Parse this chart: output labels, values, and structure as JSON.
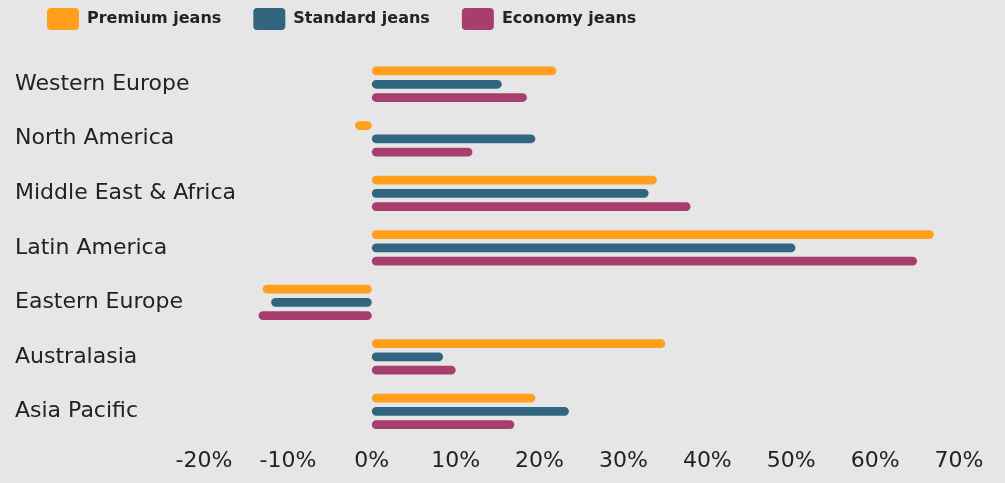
{
  "chart_data": {
    "type": "bar",
    "orientation": "horizontal",
    "categories": [
      "Western Europe",
      "North America",
      "Middle East & Africa",
      "Latin America",
      "Eastern Europe",
      "Australasia",
      "Asia Pacific"
    ],
    "series": [
      {
        "name": "Premium jeans",
        "color": "#ff9f1c",
        "values": [
          22,
          -2,
          34,
          67,
          -13,
          35,
          19.5
        ]
      },
      {
        "name": "Standard jeans",
        "color": "#326680",
        "values": [
          15.5,
          19.5,
          33,
          50.5,
          -12,
          8.5,
          23.5
        ]
      },
      {
        "name": "Economy jeans",
        "color": "#a83e6e",
        "values": [
          18.5,
          12,
          38,
          65,
          -13.5,
          10,
          17
        ]
      }
    ],
    "xlim": [
      -20,
      70
    ],
    "xticks": [
      {
        "value": -20,
        "label": "-20%"
      },
      {
        "value": -10,
        "label": "-10%"
      },
      {
        "value": 0,
        "label": "0%"
      },
      {
        "value": 10,
        "label": "10%"
      },
      {
        "value": 20,
        "label": "20%"
      },
      {
        "value": 30,
        "label": "30%"
      },
      {
        "value": 40,
        "label": "40%"
      },
      {
        "value": 50,
        "label": "50%"
      },
      {
        "value": 60,
        "label": "60%"
      },
      {
        "value": 70,
        "label": "70%"
      }
    ],
    "grid": false,
    "legend": "top left"
  }
}
